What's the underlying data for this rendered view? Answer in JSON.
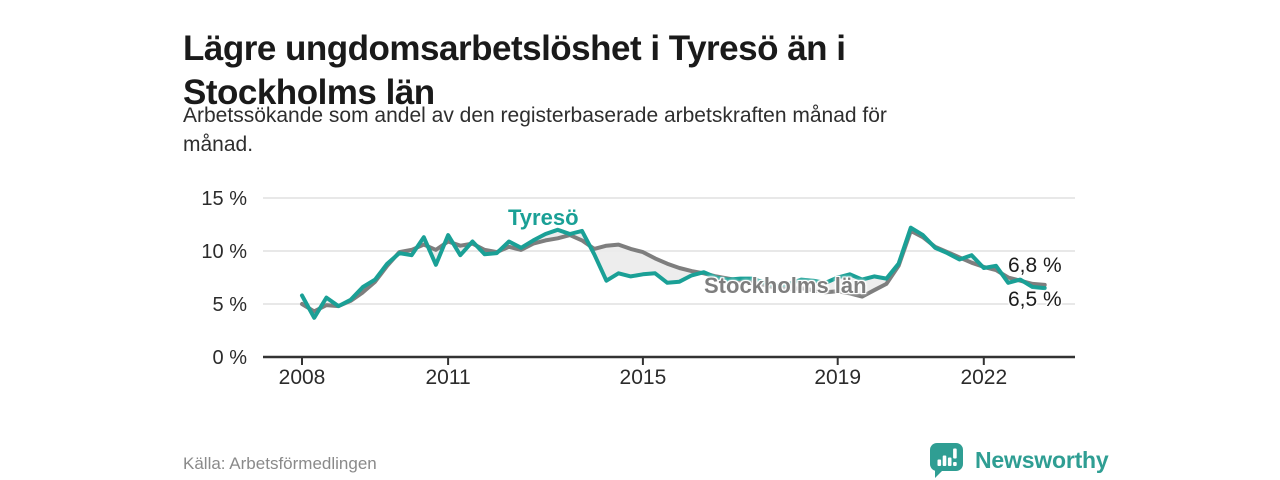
{
  "header": {
    "title_line1": "Lägre ungdomsarbetslöshet i Tyresö än i",
    "title_line2": "Stockholms län",
    "subtitle_line1": "Arbetssökande som andel av den registerbaserade arbetskraften månad för",
    "subtitle_line2": "månad."
  },
  "footer": {
    "source": "Källa: Arbetsförmedlingen",
    "logo_text": "Newsworthy"
  },
  "colors": {
    "accent_teal": "#1aa096",
    "series_gray": "#7e7e7e",
    "logo_teal": "#2f9e93",
    "grid": "#d9d9d9",
    "axis": "#333333",
    "axis_text": "#2b2b2b",
    "fill_between": "#ebebeb",
    "title_text": "#1a1a1a",
    "end_label_text": "#1c1c1c",
    "source_text": "#8a8a8a"
  },
  "chart_data": {
    "type": "line",
    "title": "Lägre ungdomsarbetslöshet i Tyresö än i Stockholms län",
    "subtitle": "Arbetssökande som andel av den registerbaserade arbetskraften månad för månad.",
    "xlabel": "",
    "ylabel": "",
    "x_unit": "year (monthly data, shown quarterly)",
    "y_unit": "%",
    "xlim": [
      2008,
      2023.4
    ],
    "ylim": [
      0,
      15
    ],
    "grid": "horizontal only",
    "legend_position": "inline labels on lines",
    "yticks": [
      {
        "value": 0,
        "label": "0 %"
      },
      {
        "value": 5,
        "label": "5 %"
      },
      {
        "value": 10,
        "label": "10 %"
      },
      {
        "value": 15,
        "label": "15 %"
      }
    ],
    "xticks": [
      {
        "value": 2008,
        "label": "2008"
      },
      {
        "value": 2011,
        "label": "2011"
      },
      {
        "value": 2015,
        "label": "2015"
      },
      {
        "value": 2019,
        "label": "2019"
      },
      {
        "value": 2022,
        "label": "2022"
      }
    ],
    "x": [
      2008.0,
      2008.25,
      2008.5,
      2008.75,
      2009.0,
      2009.25,
      2009.5,
      2009.75,
      2010.0,
      2010.25,
      2010.5,
      2010.75,
      2011.0,
      2011.25,
      2011.5,
      2011.75,
      2012.0,
      2012.25,
      2012.5,
      2012.75,
      2013.0,
      2013.25,
      2013.5,
      2013.75,
      2014.0,
      2014.25,
      2014.5,
      2014.75,
      2015.0,
      2015.25,
      2015.5,
      2015.75,
      2016.0,
      2016.25,
      2016.5,
      2016.75,
      2017.0,
      2017.25,
      2017.5,
      2017.75,
      2018.0,
      2018.25,
      2018.5,
      2018.75,
      2019.0,
      2019.25,
      2019.5,
      2019.75,
      2020.0,
      2020.25,
      2020.5,
      2020.75,
      2021.0,
      2021.25,
      2021.5,
      2021.75,
      2022.0,
      2022.25,
      2022.5,
      2022.75,
      2023.0,
      2023.25
    ],
    "series": [
      {
        "name": "Stockholms län",
        "color": "#7e7e7e",
        "end_label": "6,8 %",
        "values": [
          5.0,
          4.3,
          4.9,
          4.8,
          5.3,
          6.1,
          7.1,
          8.6,
          9.9,
          10.1,
          10.6,
          10.1,
          10.9,
          10.5,
          10.7,
          10.1,
          9.9,
          10.4,
          10.1,
          10.7,
          11.0,
          11.2,
          11.5,
          11.0,
          10.2,
          10.5,
          10.6,
          10.2,
          9.9,
          9.3,
          8.8,
          8.4,
          8.1,
          7.9,
          7.6,
          7.4,
          7.2,
          7.0,
          6.8,
          6.5,
          6.4,
          6.5,
          6.3,
          6.1,
          6.2,
          6.0,
          5.7,
          6.3,
          6.9,
          8.6,
          11.9,
          11.3,
          10.4,
          9.9,
          9.4,
          8.9,
          8.5,
          8.2,
          7.5,
          7.2,
          6.9,
          6.8
        ]
      },
      {
        "name": "Tyresö",
        "color": "#1aa096",
        "end_label": "6,5 %",
        "values": [
          5.8,
          3.7,
          5.6,
          4.8,
          5.4,
          6.6,
          7.3,
          8.8,
          9.8,
          9.6,
          11.3,
          8.7,
          11.5,
          9.6,
          10.9,
          9.7,
          9.8,
          10.9,
          10.3,
          11.0,
          11.6,
          12.0,
          11.6,
          11.9,
          9.7,
          7.2,
          7.9,
          7.6,
          7.8,
          7.9,
          7.0,
          7.1,
          7.7,
          8.0,
          7.5,
          7.3,
          7.4,
          7.4,
          7.0,
          6.7,
          6.9,
          7.3,
          7.2,
          7.0,
          7.5,
          7.8,
          7.3,
          7.6,
          7.4,
          8.8,
          12.2,
          11.5,
          10.3,
          9.8,
          9.2,
          9.6,
          8.4,
          8.6,
          7.0,
          7.3,
          6.6,
          6.5
        ]
      }
    ]
  }
}
